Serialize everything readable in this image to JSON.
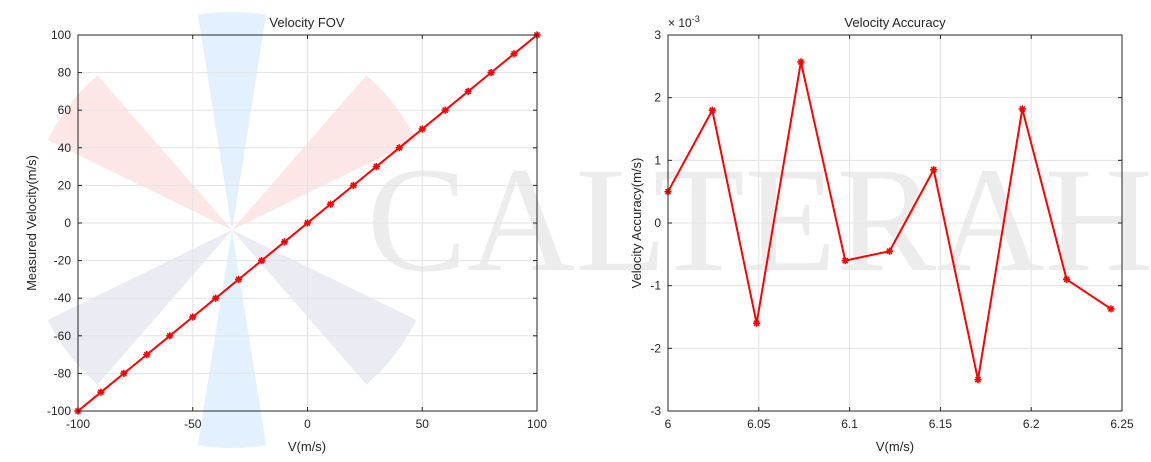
{
  "watermark": "CALTERAH",
  "chart_data": [
    {
      "type": "line",
      "title": "Velocity FOV",
      "xlabel": "V(m/s)",
      "ylabel": "Measured Velocity(m/s)",
      "xlim": [
        -100,
        100
      ],
      "ylim": [
        -100,
        100
      ],
      "xticks": [
        "-100",
        "-50",
        "0",
        "50",
        "100"
      ],
      "yticks": [
        "100",
        "80",
        "60",
        "40",
        "20",
        "0",
        "-20",
        "-40",
        "-60",
        "-80",
        "-100"
      ],
      "grid": true,
      "marker": "asterisk",
      "series_color": "#ff0000",
      "x": [
        -100,
        -90,
        -80,
        -70,
        -60,
        -50,
        -40,
        -30,
        -20,
        -10,
        0,
        10,
        20,
        30,
        40,
        50,
        60,
        70,
        80,
        90,
        100
      ],
      "y": [
        -100,
        -90,
        -80,
        -70,
        -60,
        -50,
        -40,
        -30,
        -20,
        -10,
        0,
        10,
        20,
        30,
        40,
        50,
        60,
        70,
        80,
        90,
        100
      ]
    },
    {
      "type": "line",
      "title": "Velocity Accuracy",
      "xlabel": "V(m/s)",
      "ylabel": "Velocity Accuracy(m/s)",
      "xlim": [
        6,
        6.25
      ],
      "ylim": [
        -3,
        3
      ],
      "xticks": [
        "6",
        "6.05",
        "6.1",
        "6.15",
        "6.2",
        "6.25"
      ],
      "yticks": [
        "3",
        "2",
        "1",
        "0",
        "-1",
        "-2",
        "-3"
      ],
      "yexponent_base": "× 10",
      "yexponent_power": "-3",
      "grid": true,
      "marker": "asterisk",
      "series_color": "#ff0000",
      "x": [
        6.0,
        6.0244,
        6.0488,
        6.0732,
        6.0976,
        6.122,
        6.1463,
        6.1707,
        6.1951,
        6.2195,
        6.2439
      ],
      "y": [
        0.5,
        1.8,
        -1.6,
        2.57,
        -0.6,
        -0.45,
        0.85,
        -2.5,
        1.82,
        -0.9,
        -1.37
      ]
    }
  ]
}
